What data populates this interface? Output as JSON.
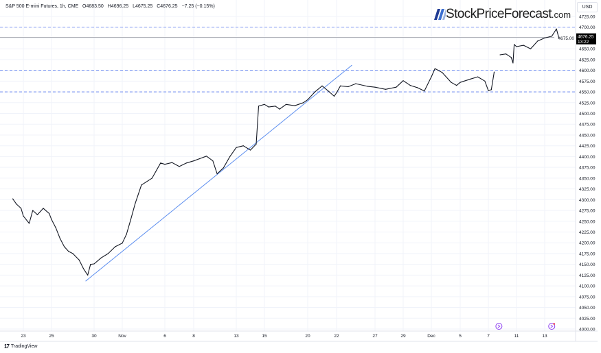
{
  "header": {
    "symbol": "S&P 500 E-mini Futures, 1h, CME",
    "open": "O4683.50",
    "high": "H4696.25",
    "low": "L4675.25",
    "close": "C4676.25",
    "change": "−7.25 (−0.15%)"
  },
  "brand": {
    "name": "StockPriceForecast",
    "suffix": ".com",
    "icon": "slashes-logo"
  },
  "currency": "USD",
  "footer": {
    "brand": "TradingView",
    "icon": "tradingview-logo"
  },
  "colors": {
    "price_line": "#131722",
    "trendline": "#5b8def",
    "levels": "#5b7cf0",
    "last_price_bg": "#000000",
    "event_icon": "#8b3cf0"
  },
  "chart_data": {
    "type": "line",
    "title": "",
    "xlabel": "",
    "ylabel": "",
    "ylim": [
      4000,
      4740
    ],
    "y_ticks": [
      "4725.00",
      "4700.00",
      "4675.00",
      "4650.00",
      "4625.00",
      "4600.00",
      "4575.00",
      "4550.00",
      "4525.00",
      "4500.00",
      "4475.00",
      "4450.00",
      "4425.00",
      "4400.00",
      "4375.00",
      "4350.00",
      "4325.00",
      "4300.00",
      "4275.00",
      "4250.00",
      "4225.00",
      "4200.00",
      "4175.00",
      "4150.00",
      "4125.00",
      "4100.00",
      "4075.00",
      "4050.00",
      "4025.00",
      "4000.00"
    ],
    "x_ticks": [
      {
        "label": "23",
        "date": "2023-10-23"
      },
      {
        "label": "25",
        "date": "2023-10-25"
      },
      {
        "label": "30",
        "date": "2023-10-30"
      },
      {
        "label": "Nov",
        "date": "2023-11-01"
      },
      {
        "label": "6",
        "date": "2023-11-06"
      },
      {
        "label": "8",
        "date": "2023-11-08"
      },
      {
        "label": "13",
        "date": "2023-11-13"
      },
      {
        "label": "15",
        "date": "2023-11-15"
      },
      {
        "label": "20",
        "date": "2023-11-20"
      },
      {
        "label": "22",
        "date": "2023-11-22"
      },
      {
        "label": "27",
        "date": "2023-11-27"
      },
      {
        "label": "29",
        "date": "2023-11-29"
      },
      {
        "label": "Dec",
        "date": "2023-12-01"
      },
      {
        "label": "5",
        "date": "2023-12-05"
      },
      {
        "label": "7",
        "date": "2023-12-07"
      },
      {
        "label": "11",
        "date": "2023-12-11"
      },
      {
        "label": "13",
        "date": "2023-12-13"
      }
    ],
    "grid": true,
    "series": [
      {
        "points": [
          [
            "2023-10-22T06:00",
            4302
          ],
          [
            "2023-10-22T12:00",
            4290
          ],
          [
            "2023-10-22T20:00",
            4280
          ],
          [
            "2023-10-23T00:00",
            4262
          ],
          [
            "2023-10-23T10:00",
            4245
          ],
          [
            "2023-10-23T16:00",
            4275
          ],
          [
            "2023-10-24T00:00",
            4265
          ],
          [
            "2023-10-24T10:00",
            4280
          ],
          [
            "2023-10-24T20:00",
            4268
          ],
          [
            "2023-10-25T00:00",
            4254
          ],
          [
            "2023-10-25T12:00",
            4235
          ],
          [
            "2023-10-26T00:00",
            4210
          ],
          [
            "2023-10-26T12:00",
            4191
          ],
          [
            "2023-10-27T00:00",
            4180
          ],
          [
            "2023-10-27T12:00",
            4175
          ],
          [
            "2023-10-28T06:00",
            4160
          ],
          [
            "2023-10-28T18:00",
            4140
          ],
          [
            "2023-10-29T06:00",
            4125
          ],
          [
            "2023-10-29T14:00",
            4150
          ],
          [
            "2023-10-30T00:00",
            4151
          ],
          [
            "2023-10-30T12:00",
            4165
          ],
          [
            "2023-10-31T00:00",
            4175
          ],
          [
            "2023-10-31T12:00",
            4191
          ],
          [
            "2023-11-01T00:00",
            4199
          ],
          [
            "2023-11-01T12:00",
            4220
          ],
          [
            "2023-11-02T00:00",
            4254
          ],
          [
            "2023-11-02T12:00",
            4290
          ],
          [
            "2023-11-03T06:00",
            4334
          ],
          [
            "2023-11-04T12:00",
            4350
          ],
          [
            "2023-11-05T12:00",
            4385
          ],
          [
            "2023-11-06T00:00",
            4382
          ],
          [
            "2023-11-06T12:00",
            4386
          ],
          [
            "2023-11-07T00:00",
            4377
          ],
          [
            "2023-11-07T12:00",
            4385
          ],
          [
            "2023-11-08T00:00",
            4390
          ],
          [
            "2023-11-08T16:00",
            4395
          ],
          [
            "2023-11-09T12:00",
            4401
          ],
          [
            "2023-11-10T06:00",
            4390
          ],
          [
            "2023-11-10T18:00",
            4360
          ],
          [
            "2023-11-11T12:00",
            4374
          ],
          [
            "2023-11-12T06:00",
            4400
          ],
          [
            "2023-11-13T00:00",
            4421
          ],
          [
            "2023-11-13T12:00",
            4425
          ],
          [
            "2023-11-14T00:00",
            4415
          ],
          [
            "2023-11-14T10:00",
            4429
          ],
          [
            "2023-11-14T14:00",
            4517
          ],
          [
            "2023-11-15T00:00",
            4521
          ],
          [
            "2023-11-15T12:00",
            4515
          ],
          [
            "2023-11-16T06:00",
            4517
          ],
          [
            "2023-11-16T18:00",
            4510
          ],
          [
            "2023-11-17T12:00",
            4521
          ],
          [
            "2023-11-18T12:00",
            4518
          ],
          [
            "2023-11-19T12:00",
            4525
          ],
          [
            "2023-11-20T00:00",
            4532
          ],
          [
            "2023-11-20T12:00",
            4550
          ],
          [
            "2023-11-21T00:00",
            4564
          ],
          [
            "2023-11-21T12:00",
            4550
          ],
          [
            "2023-11-21T20:00",
            4540
          ],
          [
            "2023-11-22T00:00",
            4548
          ],
          [
            "2023-11-22T12:00",
            4564
          ],
          [
            "2023-11-23T12:00",
            4562
          ],
          [
            "2023-11-24T12:00",
            4569
          ],
          [
            "2023-11-26T00:00",
            4563
          ],
          [
            "2023-11-27T00:00",
            4561
          ],
          [
            "2023-11-27T18:00",
            4556
          ],
          [
            "2023-11-28T12:00",
            4561
          ],
          [
            "2023-11-29T00:00",
            4576
          ],
          [
            "2023-11-29T12:00",
            4565
          ],
          [
            "2023-11-30T00:00",
            4560
          ],
          [
            "2023-11-30T12:00",
            4552
          ],
          [
            "2023-12-01T00:00",
            4585
          ],
          [
            "2023-12-01T12:00",
            4604
          ],
          [
            "2023-12-02T12:00",
            4595
          ],
          [
            "2023-12-03T18:00",
            4572
          ],
          [
            "2023-12-04T12:00",
            4565
          ],
          [
            "2023-12-05T00:00",
            4572
          ],
          [
            "2023-12-05T18:00",
            4580
          ],
          [
            "2023-12-06T06:00",
            4585
          ],
          [
            "2023-12-06T18:00",
            4575
          ],
          [
            "2023-12-07T00:00",
            4553
          ],
          [
            "2023-12-07T10:00",
            4555
          ],
          [
            "2023-12-07T20:00",
            4596
          ],
          [
            null,
            null
          ],
          [
            "2023-12-08T16:00",
            4636
          ],
          [
            "2023-12-09T12:00",
            4638
          ],
          [
            "2023-12-10T06:00",
            4630
          ],
          [
            "2023-12-10T12:00",
            4617
          ],
          [
            "2023-12-10T16:00",
            4660
          ],
          [
            "2023-12-11T00:00",
            4655
          ],
          [
            "2023-12-11T12:00",
            4658
          ],
          [
            "2023-12-12T00:00",
            4650
          ],
          [
            "2023-12-12T12:00",
            4668
          ],
          [
            "2023-12-13T00:00",
            4675
          ],
          [
            "2023-12-13T12:00",
            4679
          ],
          [
            "2023-12-13T20:00",
            4696
          ],
          [
            "2023-12-14T00:00",
            4676.25
          ]
        ]
      }
    ],
    "trendline": {
      "start": [
        "2023-10-29T00:00",
        4111
      ],
      "end": [
        "2023-11-24T00:00",
        4612
      ]
    },
    "horizontal_levels": [
      4700,
      4600,
      4550
    ],
    "last_price": {
      "value": "4676.25",
      "countdown": "13:22"
    },
    "events": [
      {
        "date": "2023-12-08",
        "icon": "economic-event-icon"
      },
      {
        "date": "2023-12-13",
        "icon": "economic-event-icon"
      }
    ]
  }
}
